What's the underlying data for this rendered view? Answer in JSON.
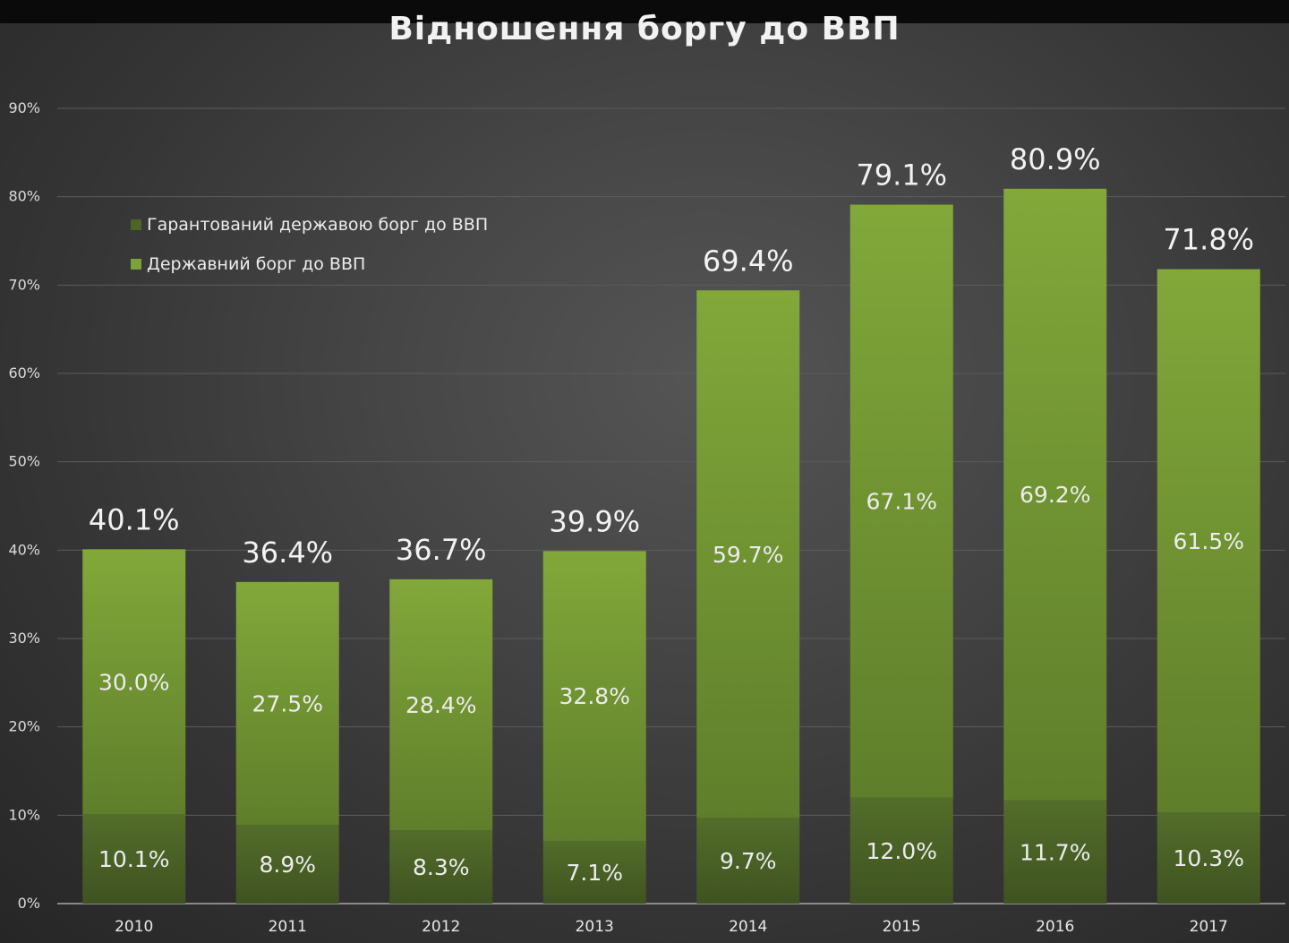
{
  "chart_data": {
    "type": "bar",
    "stacked": true,
    "title": "Відношення  боргу до ВВП",
    "xlabel": "",
    "ylabel": "",
    "categories": [
      "2010",
      "2011",
      "2012",
      "2013",
      "2014",
      "2015",
      "2016",
      "2017"
    ],
    "ylim": [
      0,
      90
    ],
    "yticks": [
      "0%",
      "10%",
      "20%",
      "30%",
      "40%",
      "50%",
      "60%",
      "70%",
      "80%",
      "90%"
    ],
    "grid": true,
    "legend_position": "top-left",
    "series": [
      {
        "name": "Гарантований державою борг до ВВП",
        "values": [
          10.1,
          8.9,
          8.3,
          7.1,
          9.7,
          12.0,
          11.7,
          10.3
        ],
        "labels": [
          "10.1%",
          "8.9%",
          "8.3%",
          "7.1%",
          "9.7%",
          "12.0%",
          "11.7%",
          "10.3%"
        ],
        "color": "#4e6428"
      },
      {
        "name": "Державний борг до ВВП",
        "values": [
          30.0,
          27.5,
          28.4,
          32.8,
          59.7,
          67.1,
          69.2,
          61.5
        ],
        "labels": [
          "30.0%",
          "27.5%",
          "28.4%",
          "32.8%",
          "59.7%",
          "67.1%",
          "69.2%",
          "61.5%"
        ],
        "color": "#7aa33a"
      }
    ],
    "totals": [
      40.1,
      36.4,
      36.7,
      39.9,
      69.4,
      79.1,
      80.9,
      71.8
    ],
    "total_labels": [
      "40.1%",
      "36.4%",
      "36.7%",
      "39.9%",
      "69.4%",
      "79.1%",
      "80.9%",
      "71.8%"
    ]
  }
}
